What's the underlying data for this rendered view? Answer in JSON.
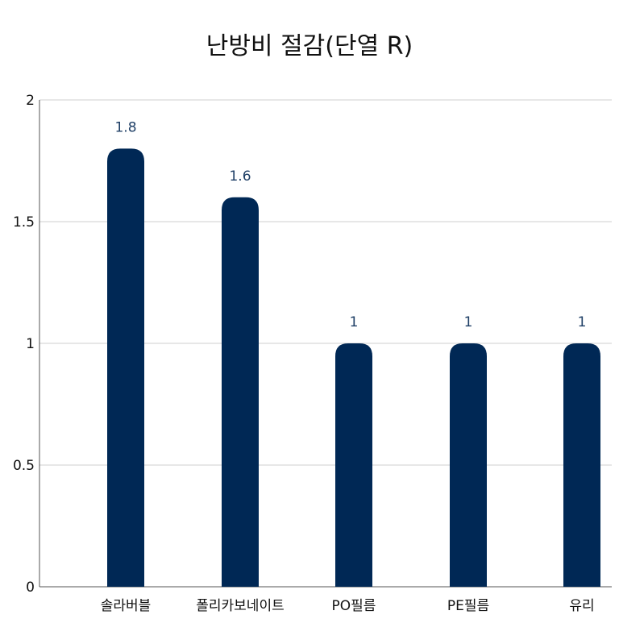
{
  "chart_data": {
    "type": "bar",
    "title": "난방비 절감(단열 R)",
    "xlabel": "",
    "ylabel": "",
    "categories": [
      "솔라버블",
      "폴리카보네이트",
      "PO필름",
      "PE필름",
      "유리"
    ],
    "values": [
      1.8,
      1.6,
      1,
      1,
      1
    ],
    "data_labels": [
      "1.8",
      "1.6",
      "1",
      "1",
      "1"
    ],
    "ylim": [
      0,
      2
    ],
    "yticks": [
      0,
      0.5,
      1,
      1.5,
      2
    ],
    "ytick_labels": [
      "0",
      "0.5",
      "1",
      "1.5",
      "2"
    ],
    "grid": true,
    "legend": "none",
    "colors": {
      "bar": "#002855",
      "data_label": "#1f3f66"
    }
  }
}
